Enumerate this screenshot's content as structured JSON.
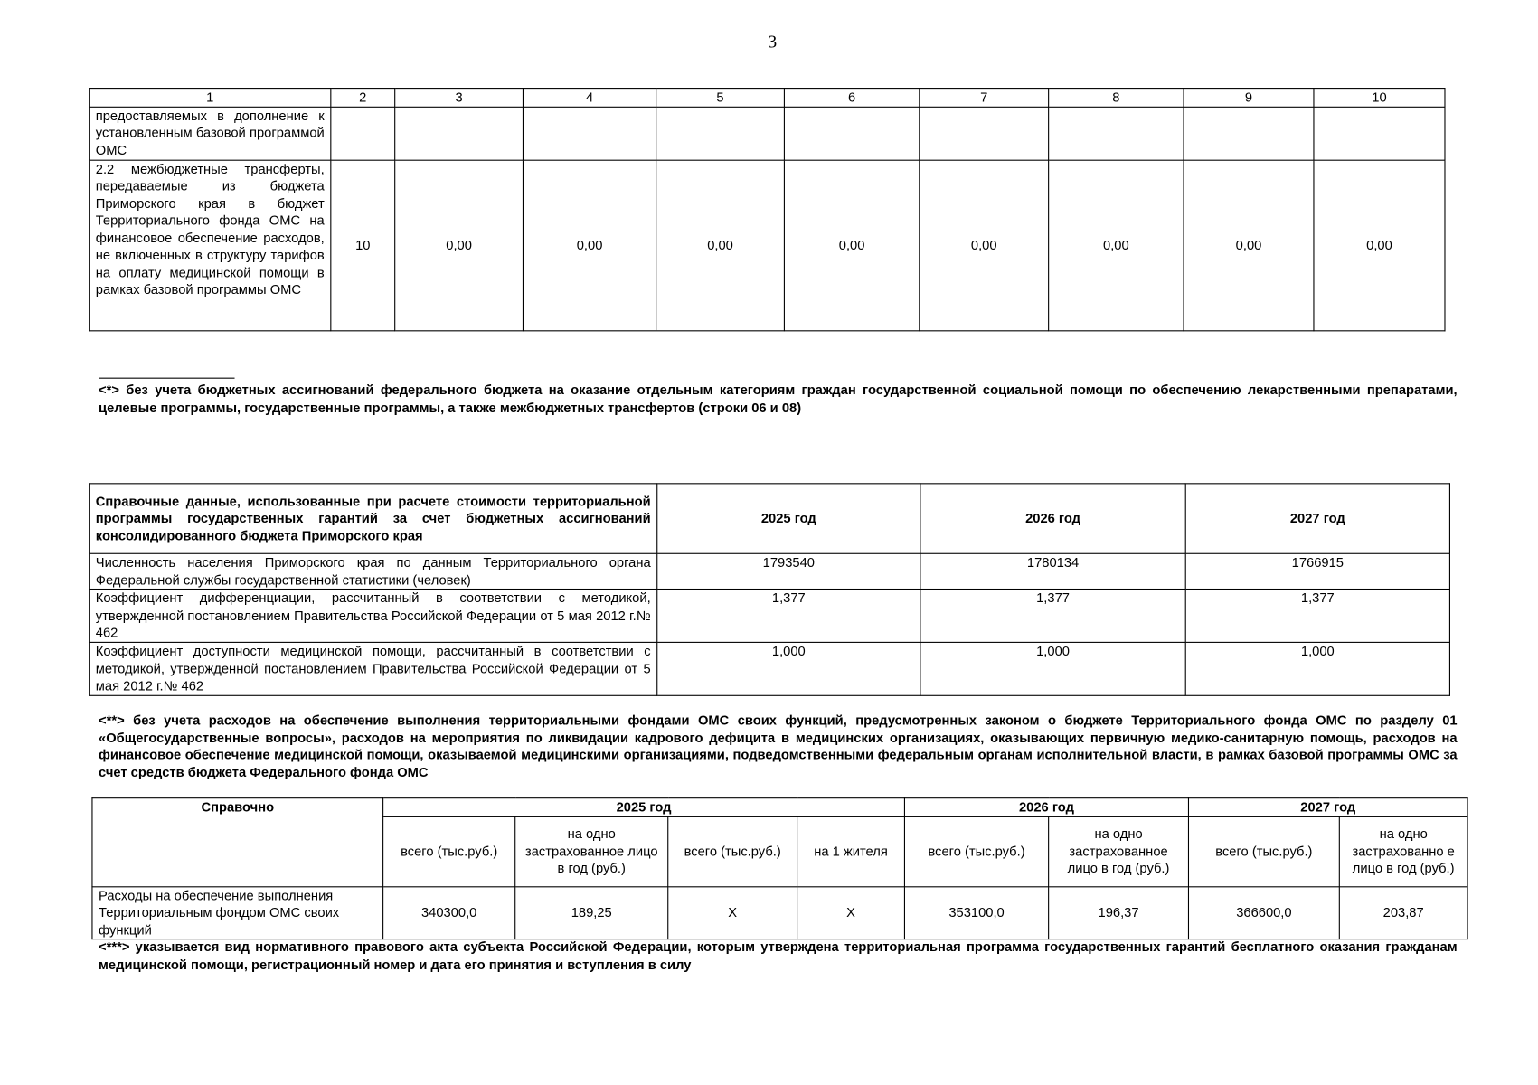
{
  "page_number": "3",
  "table1": {
    "headers": [
      "1",
      "2",
      "3",
      "4",
      "5",
      "6",
      "7",
      "8",
      "9",
      "10"
    ],
    "rows": [
      {
        "label": "предоставляемых в дополнение к установленным базовой программой ОМС",
        "cells": [
          "",
          "",
          "",
          "",
          "",
          "",
          "",
          "",
          ""
        ]
      },
      {
        "label": "2.2 межбюджетные трансферты, передаваемые из бюджета Приморского края в бюджет Территориального фонда ОМС на финансовое обеспечение расходов, не включенных в структуру тарифов на оплату медицинской помощи в рамках базовой программы ОМС",
        "cells": [
          "10",
          "0,00",
          "0,00",
          "0,00",
          "0,00",
          "0,00",
          "0,00",
          "0,00",
          "0,00"
        ]
      }
    ]
  },
  "footnote1": "<*> без учета бюджетных ассигнований федерального бюджета на оказание отдельным категориям граждан государственной социальной помощи по обеспечению лекарственными препаратами, целевые программы, государственные программы, а также межбюджетных трансфертов (строки 06 и 08)",
  "table2": {
    "header_label": "Справочные данные, использованные при расчете стоимости территориальной программы государственных гарантий за счет бюджетных ассигнований консолидированного бюджета Приморского края",
    "years": [
      "2025 год",
      "2026 год",
      "2027 год"
    ],
    "rows": [
      {
        "label": "Численность населения Приморского края по данным Территориального органа Федеральной службы государственной статистики (человек)",
        "values": [
          "1793540",
          "1780134",
          "1766915"
        ]
      },
      {
        "label": "Коэффициент дифференциации, рассчитанный в соответствии с методикой, утвержденной постановлением Правительства Российской Федерации от 5 мая 2012 г.№ 462",
        "values": [
          "1,377",
          "1,377",
          "1,377"
        ]
      },
      {
        "label": "Коэффициент доступности медицинской помощи, рассчитанный в соответствии с методикой, утвержденной постановлением Правительства Российской Федерации от 5 мая 2012 г.№ 462",
        "values": [
          "1,000",
          "1,000",
          "1,000"
        ]
      }
    ]
  },
  "footnote2": "<**> без учета расходов на обеспечение выполнения территориальными фондами ОМС своих функций, предусмотренных законом о бюджете Территориального фонда ОМС по разделу 01 «Общегосударственные вопросы», расходов на мероприятия по ликвидации кадрового дефицита в медицинских организациях, оказывающих первичную медико-санитарную помощь, расходов на финансовое обеспечение медицинской помощи, оказываемой медицинскими организациями, подведомственными федеральным органам исполнительной власти, в рамках базовой программы ОМС за счет средств бюджета Федерального фонда ОМС",
  "table3": {
    "header_label": "Справочно",
    "years": [
      "2025 год",
      "2026 год",
      "2027 год"
    ],
    "subheaders": [
      "всего (тыс.руб.)",
      "на одно застрахованное лицо в год (руб.)",
      "всего (тыс.руб.)",
      "на 1 жителя",
      "всего (тыс.руб.)",
      "на одно застрахованное лицо в год (руб.)",
      "всего (тыс.руб.)",
      "на одно застрахованно е лицо в год (руб.)"
    ],
    "row": {
      "label": "Расходы на обеспечение выполнения Территориальным фондом ОМС своих функций",
      "values": [
        "340300,0",
        "189,25",
        "X",
        "X",
        "353100,0",
        "196,37",
        "366600,0",
        "203,87"
      ]
    }
  },
  "footnote3": "<***> указывается вид нормативного правового акта субъекта Российской Федерации, которым утверждена территориальная программа государственных гарантий бесплатного оказания гражданам медицинской помощи, регистрационный номер и дата его принятия и вступления в силу"
}
